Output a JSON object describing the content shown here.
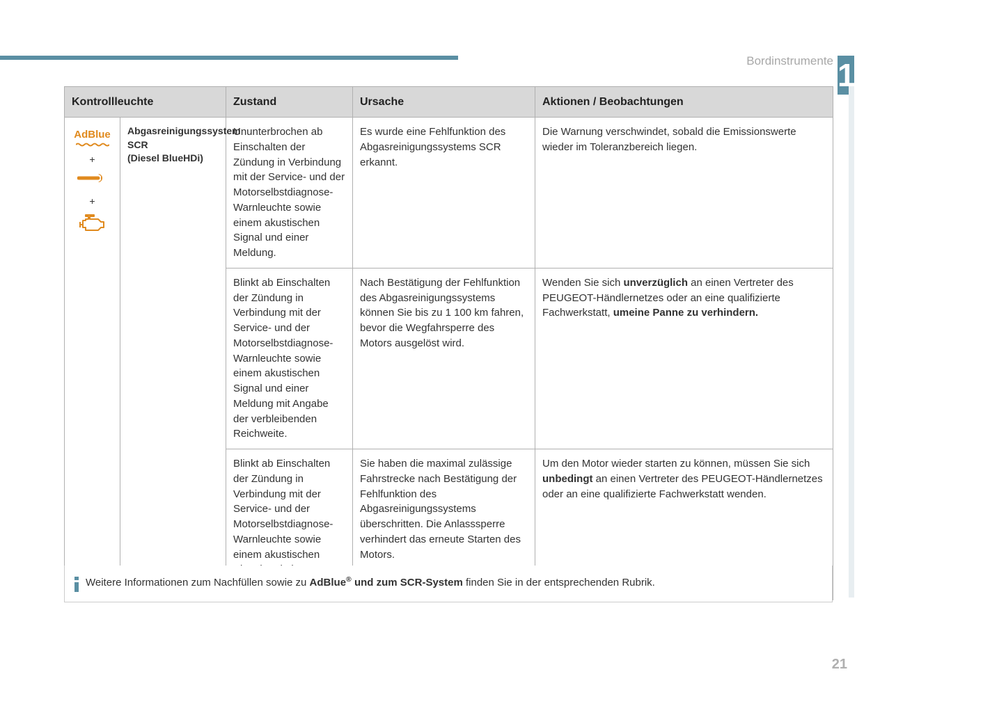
{
  "header": {
    "section_label": "Bordinstrumente",
    "chapter_number": "1",
    "page_number": "21",
    "top_bar_color": "#5a8fa3"
  },
  "table": {
    "columns": {
      "kontrollleuchte": "Kontrollleuchte",
      "zustand": "Zustand",
      "ursache": "Ursache",
      "aktionen": "Aktionen / Beobachtungen"
    },
    "icon_cell": {
      "adblue_label": "AdBlue",
      "adblue_color": "#e08a1e",
      "plus": "+",
      "wrench_color": "#e08a1e",
      "engine_color": "#e08a1e"
    },
    "name_cell": {
      "line1": "Abgasreinigungssystem",
      "line2": "SCR",
      "line3": "(Diesel BlueHDi)"
    },
    "rows": [
      {
        "zustand": "Ununterbrochen ab Einschalten der Zündung in Verbindung mit der Service- und der Motorselbstdiagnose-Warnleuchte sowie einem akustischen Signal und einer Meldung.",
        "ursache": "Es wurde eine Fehlfunktion des Abgasreinigungssystems SCR erkannt.",
        "aktionen_parts": [
          {
            "text": "Die Warnung verschwindet, sobald die Emissionswerte wieder im Toleranzbereich liegen.",
            "bold": false
          }
        ]
      },
      {
        "zustand": "Blinkt ab Einschalten der Zündung in Verbindung mit der Service- und der Motorselbstdiagnose-Warnleuchte sowie einem akustischen Signal und einer Meldung mit Angabe der verbleibenden Reichweite.",
        "ursache": "Nach Bestätigung der Fehlfunktion des Abgasreinigungssystems können Sie bis zu 1 100 km fahren, bevor die Wegfahrsperre des Motors ausgelöst wird.",
        "aktionen_parts": [
          {
            "text": "Wenden Sie sich ",
            "bold": false
          },
          {
            "text": "unverzüglich",
            "bold": true
          },
          {
            "text": " an einen Vertreter des PEUGEOT-Händlernetzes oder an eine qualifizierte Fachwerkstatt, ",
            "bold": false
          },
          {
            "text": "umeine Panne zu verhindern.",
            "bold": true
          }
        ]
      },
      {
        "zustand": "Blinkt ab Einschalten der Zündung in Verbindung mit der Service- und der Motorselbstdiagnose-Warnleuchte sowie einem akustischen Signal und einer Meldung.",
        "ursache": "Sie haben die maximal zulässige Fahrstrecke nach Bestätigung der Fehlfunktion des Abgasreinigungssystems überschritten. Die Anlasssperre verhindert das erneute Starten des Motors.",
        "aktionen_parts": [
          {
            "text": "Um den Motor wieder starten zu können, müssen Sie sich ",
            "bold": false
          },
          {
            "text": "unbedingt",
            "bold": true
          },
          {
            "text": " an einen Vertreter des PEUGEOT-Händlernetzes oder an eine qualifizierte Fachwerkstatt wenden.",
            "bold": false
          }
        ]
      }
    ]
  },
  "info_box": {
    "parts": [
      {
        "text": "Weitere Informationen zum Nachfüllen sowie zu ",
        "bold": false
      },
      {
        "text": "AdBlue",
        "bold": true
      },
      {
        "text": "®",
        "bold": true,
        "sup": true
      },
      {
        "text": " und zum SCR-System",
        "bold": true
      },
      {
        "text": " finden Sie in der entsprechenden Rubrik.",
        "bold": false
      }
    ]
  }
}
